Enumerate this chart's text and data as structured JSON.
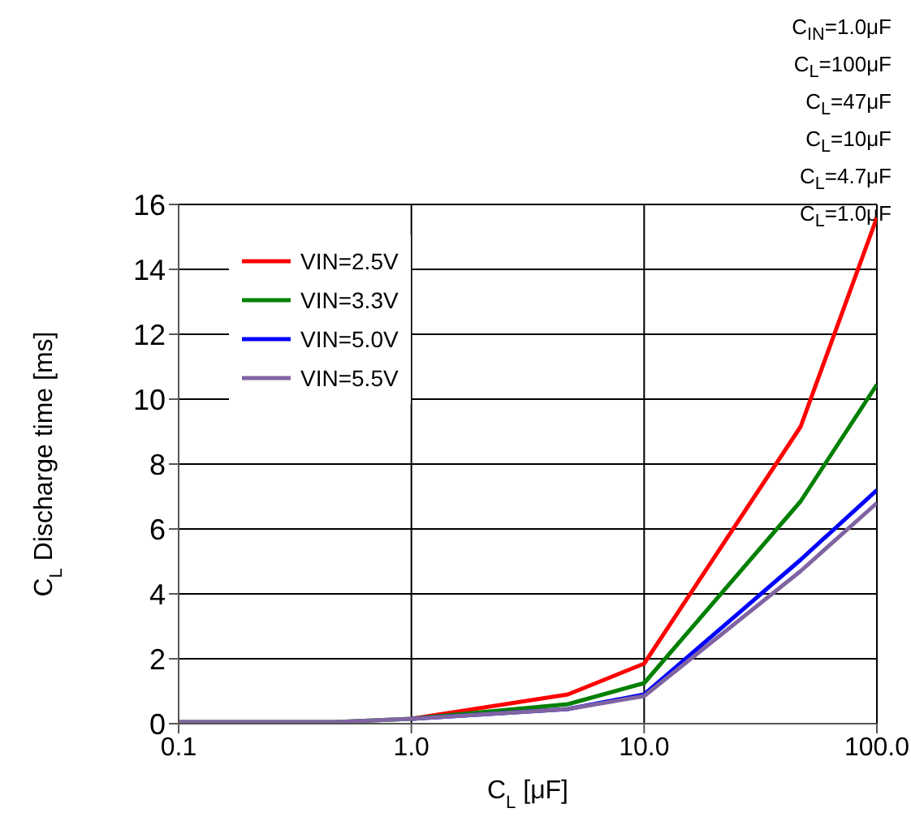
{
  "chart_data": {
    "type": "line",
    "xlabel": "C$_{L}$ [μF]",
    "ylabel": "C$_{L}$ Discharge time  [ms]",
    "annotations": [
      "C$_{IN}$=1.0μF",
      "C$_{L}$=100μF",
      "C$_{L}$=47μF",
      "C$_{L}$=10μF",
      "C$_{L}$=4.7μF",
      "C$_{L}$=1.0μF"
    ],
    "x": [
      0.1,
      0.47,
      1.0,
      4.7,
      10,
      47,
      100
    ],
    "series": [
      {
        "name": "VIN=2.5V",
        "color": "#ff0000",
        "values": [
          null,
          null,
          0.15,
          0.9,
          1.85,
          9.15,
          15.6
        ]
      },
      {
        "name": "VIN=3.3V",
        "color": "#008000",
        "values": [
          0.05,
          0.05,
          0.15,
          0.6,
          1.25,
          6.85,
          10.45
        ]
      },
      {
        "name": "VIN=5.0V",
        "color": "#0000ff",
        "values": [
          null,
          null,
          0.15,
          0.45,
          0.9,
          5.05,
          7.2
        ]
      },
      {
        "name": "VIN=5.5V",
        "color": "#8064a2",
        "values": [
          0.05,
          0.05,
          0.15,
          0.45,
          0.85,
          4.7,
          6.8
        ]
      }
    ],
    "log": "x",
    "xlim": [
      0.1,
      100
    ],
    "xticks": [
      {
        "value": 0.1,
        "label": "0.1"
      },
      {
        "value": 1,
        "label": "1.0"
      },
      {
        "value": 10,
        "label": "10.0"
      },
      {
        "value": 100,
        "label": "100.0"
      }
    ],
    "ylim": [
      0,
      16
    ],
    "yticks": [
      0,
      2,
      4,
      6,
      8,
      10,
      12,
      14,
      16
    ],
    "grid": true,
    "legend": "top left",
    "marker": "none",
    "line_style": "solid"
  }
}
